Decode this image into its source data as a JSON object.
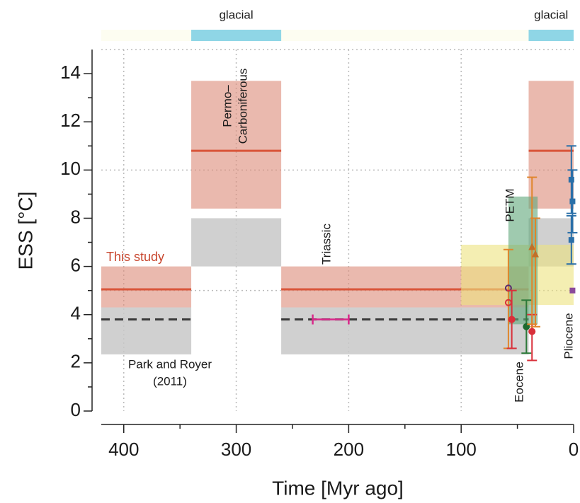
{
  "chart_data": {
    "type": "band-errorbar",
    "x_label": "Time [Myr ago]",
    "y_label": "ESS [°C]",
    "xlim": [
      420,
      0
    ],
    "ylim": [
      0,
      15
    ],
    "xticks": [
      400,
      300,
      200,
      100,
      0
    ],
    "xminor": [
      350,
      250,
      150,
      50
    ],
    "yticks": [
      0,
      2,
      4,
      6,
      8,
      10,
      12,
      14
    ],
    "yminor": [
      1,
      3,
      5,
      7,
      9,
      11,
      13
    ],
    "grid": true,
    "hlines": [
      5,
      10,
      15
    ],
    "glacial_periods": [
      {
        "label": "glacial",
        "x": [
          340,
          260
        ]
      },
      {
        "label": "glacial",
        "x": [
          40,
          0
        ]
      }
    ],
    "glacial_color": "#8fd6e6",
    "background_color": "#fdfdf1",
    "series": [
      {
        "name": "Park and Royer",
        "name2": "(2011)",
        "color": "#c8c8c8",
        "line_color": "#3a3a3a",
        "dashed": true,
        "segments": [
          {
            "x": [
              420,
              340
            ],
            "y": [
              2.35,
              4.3
            ],
            "mid": 3.8
          },
          {
            "x": [
              340,
              260
            ],
            "y": [
              6.0,
              8.0
            ],
            "mid": null
          },
          {
            "x": [
              260,
              40
            ],
            "y": [
              2.35,
              4.3
            ],
            "mid": 3.8
          },
          {
            "x": [
              40,
              0
            ],
            "y": [
              6.0,
              8.0
            ],
            "mid": null
          }
        ]
      },
      {
        "name": "This study",
        "color": "#dc8a78",
        "line_color": "#d9553a",
        "dashed": false,
        "segments": [
          {
            "x": [
              420,
              340
            ],
            "y": [
              4.3,
              6.0
            ],
            "mid": 5.05
          },
          {
            "x": [
              340,
              260
            ],
            "y": [
              8.4,
              13.7
            ],
            "mid": 10.8
          },
          {
            "x": [
              260,
              40
            ],
            "y": [
              4.3,
              6.0
            ],
            "mid": 5.05
          },
          {
            "x": [
              40,
              0
            ],
            "y": [
              8.4,
              13.7
            ],
            "mid": 10.8
          }
        ]
      }
    ],
    "proxy_boxes": [
      {
        "x": [
          100,
          0
        ],
        "y": [
          4.4,
          6.9
        ],
        "color": "#ece27e"
      },
      {
        "x": [
          58,
          32
        ],
        "y": [
          3.6,
          8.9
        ],
        "color": "#5fa67a"
      }
    ],
    "triassic": {
      "x": [
        232,
        200
      ],
      "y": 3.8,
      "color": "#d9288a"
    },
    "points": [
      {
        "x": 58,
        "y": 5.1,
        "low": 2.6,
        "high": 6.7,
        "color": "#e0852b",
        "marker": "open-circle",
        "marker_color": "#5a2a6e"
      },
      {
        "x": 58,
        "y": 4.5,
        "low": 4.5,
        "high": 4.5,
        "color": "#d9303a",
        "marker": "open-circle",
        "marker_color": "#d9303a"
      },
      {
        "x": 55,
        "y": 3.8,
        "low": 2.6,
        "high": 5.0,
        "color": "#d9303a",
        "marker": "circle",
        "marker_color": "#d9303a"
      },
      {
        "x": 42,
        "y": 3.5,
        "low": 2.4,
        "high": 4.6,
        "color": "#2d7a3a",
        "marker": "circle",
        "marker_color": "#1e6a30"
      },
      {
        "x": 37,
        "y": 3.3,
        "low": 2.1,
        "high": 4.0,
        "color": "#d9303a",
        "marker": "circle",
        "marker_color": "#d9303a"
      },
      {
        "x": 37,
        "y": 6.8,
        "low": 3.6,
        "high": 9.7,
        "color": "#e0852b",
        "marker": "triangle",
        "marker_color": "#c0702a"
      },
      {
        "x": 34,
        "y": 6.5,
        "low": 3.5,
        "high": 8.0,
        "color": "#e0852b",
        "marker": "triangle",
        "marker_color": "#c0702a"
      },
      {
        "x": 2,
        "y": 9.6,
        "low": 8.2,
        "high": 11.0,
        "color": "#2a6fa8",
        "marker": "square",
        "marker_color": "#2a6fa8"
      },
      {
        "x": 1,
        "y": 8.7,
        "low": 7.4,
        "high": 10.0,
        "color": "#2a6fa8",
        "marker": "square",
        "marker_color": "#2a6fa8"
      },
      {
        "x": 2,
        "y": 7.1,
        "low": 6.1,
        "high": 8.1,
        "color": "#2a6fa8",
        "marker": "square",
        "marker_color": "#2a6fa8"
      },
      {
        "x": 1,
        "y": 5.0,
        "low": 5.0,
        "high": 5.0,
        "color": "#8a4a9a",
        "marker": "square",
        "marker_color": "#8a4a9a"
      }
    ],
    "annotations": [
      "Permo–",
      "Carboniferous",
      "Triassic",
      "PETM",
      "Eocene",
      "Pliocene"
    ]
  }
}
